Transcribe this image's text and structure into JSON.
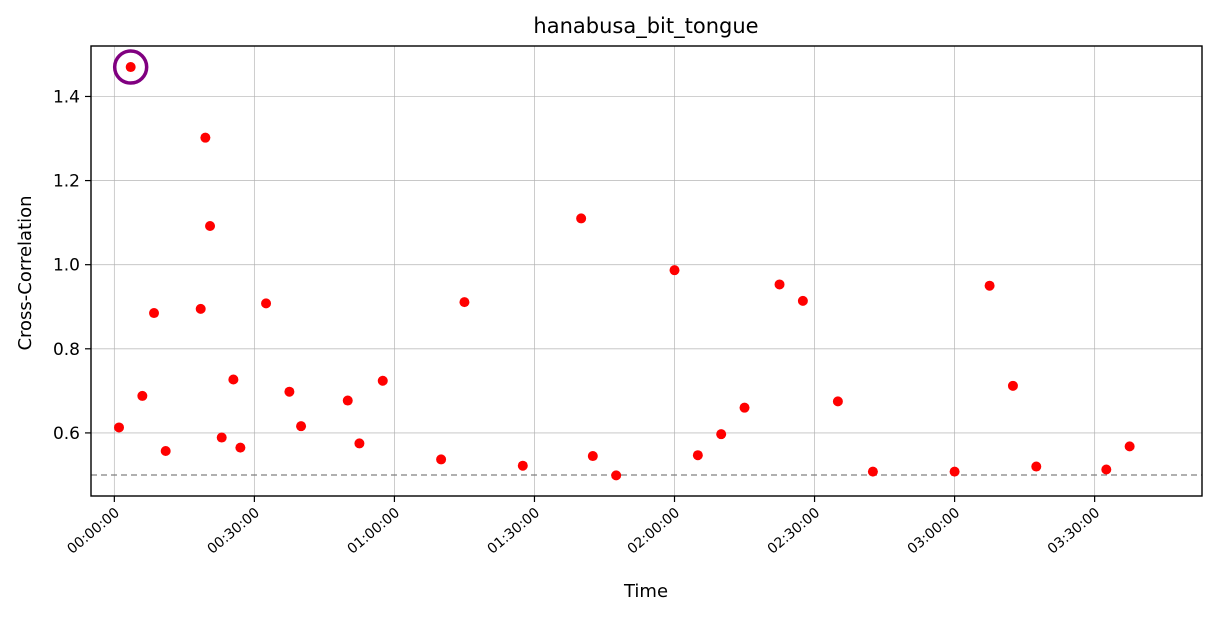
{
  "chart_data": {
    "type": "scatter",
    "title": "hanabusa_bit_tongue",
    "xlabel": "Time",
    "ylabel": "Cross-Correlation",
    "x_unit": "time (HH:MM:SS)",
    "xlim": [
      "-00:05:00",
      "03:53:00"
    ],
    "ylim": [
      0.45,
      1.52
    ],
    "x_ticks": [
      "00:00:00",
      "00:30:00",
      "01:00:00",
      "01:30:00",
      "02:00:00",
      "02:30:00",
      "03:00:00",
      "03:30:00"
    ],
    "y_ticks": [
      "0.6",
      "0.8",
      "1.0",
      "1.2",
      "1.4"
    ],
    "y_tick_values": [
      0.6,
      0.8,
      1.0,
      1.2,
      1.4
    ],
    "grid": true,
    "threshold": 0.5,
    "highlighted_point_index": 1,
    "colors": {
      "points": "#ff0000",
      "highlight": "#800080",
      "threshold": "#808080",
      "grid": "#b0b0b0"
    },
    "series": [
      {
        "x": [
          "00:01:00",
          "00:03:30",
          "00:06:00",
          "00:08:30",
          "00:11:00",
          "00:18:30",
          "00:19:30",
          "00:20:30",
          "00:23:00",
          "00:25:30",
          "00:27:00",
          "00:32:30",
          "00:37:30",
          "00:40:00",
          "00:50:00",
          "00:52:30",
          "00:57:30",
          "01:10:00",
          "01:15:00",
          "01:27:30",
          "01:40:00",
          "01:42:30",
          "01:47:30",
          "02:00:00",
          "02:05:00",
          "02:10:00",
          "02:15:00",
          "02:22:30",
          "02:27:30",
          "02:35:00",
          "02:42:30",
          "03:00:00",
          "03:07:30",
          "03:12:30",
          "03:17:30",
          "03:32:30",
          "03:37:30"
        ],
        "y": [
          0.613,
          1.47,
          0.688,
          0.885,
          0.557,
          0.895,
          1.302,
          1.092,
          0.589,
          0.727,
          0.565,
          0.908,
          0.698,
          0.616,
          0.677,
          0.575,
          0.724,
          0.537,
          0.911,
          0.522,
          1.11,
          0.545,
          0.499,
          0.987,
          0.547,
          0.597,
          0.66,
          0.953,
          0.914,
          0.675,
          0.508,
          0.508,
          0.95,
          0.712,
          0.52,
          0.513,
          0.568
        ]
      }
    ]
  }
}
